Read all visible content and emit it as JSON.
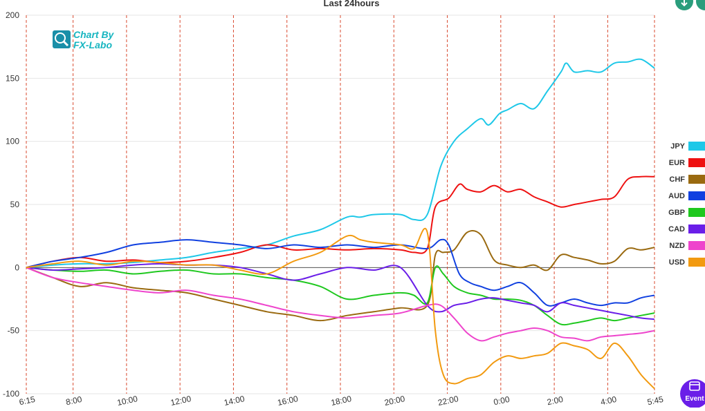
{
  "chart_data": {
    "type": "line",
    "title": "Last 24hours",
    "xlabel": "",
    "ylabel": "",
    "ylim": [
      -100,
      200
    ],
    "yticks": [
      -100,
      -50,
      0,
      50,
      100,
      150,
      200
    ],
    "x_tick_labels": [
      "6:15",
      "8:00",
      "10:00",
      "12:00",
      "14:00",
      "16:00",
      "18:00",
      "20:00",
      "22:00",
      "0:00",
      "2:00",
      "4:00",
      "5:45"
    ],
    "x_tick_hours": [
      0,
      1.75,
      3.75,
      5.75,
      7.75,
      9.75,
      11.75,
      13.75,
      15.75,
      17.75,
      19.75,
      21.75,
      23.5
    ],
    "vertical_gridlines": "dashed red at each hour label",
    "legend_position": "right",
    "series": [
      {
        "name": "JPY",
        "color": "#1ec8e8",
        "points": [
          [
            0,
            0
          ],
          [
            1,
            2
          ],
          [
            2,
            3
          ],
          [
            3,
            3
          ],
          [
            4,
            4
          ],
          [
            5,
            6
          ],
          [
            6,
            8
          ],
          [
            7,
            12
          ],
          [
            8,
            15
          ],
          [
            9,
            18
          ],
          [
            10,
            25
          ],
          [
            11,
            30
          ],
          [
            12,
            40
          ],
          [
            12.5,
            40
          ],
          [
            13,
            42
          ],
          [
            14,
            42
          ],
          [
            14.5,
            38
          ],
          [
            15,
            42
          ],
          [
            15.5,
            80
          ],
          [
            16,
            100
          ],
          [
            16.5,
            110
          ],
          [
            17,
            118
          ],
          [
            17.3,
            113
          ],
          [
            17.7,
            122
          ],
          [
            18,
            125
          ],
          [
            18.5,
            130
          ],
          [
            19,
            126
          ],
          [
            19.5,
            140
          ],
          [
            20,
            155
          ],
          [
            20.2,
            162
          ],
          [
            20.5,
            155
          ],
          [
            21,
            156
          ],
          [
            21.5,
            155
          ],
          [
            22,
            162
          ],
          [
            22.5,
            163
          ],
          [
            23,
            165
          ],
          [
            23.5,
            158
          ]
        ]
      },
      {
        "name": "EUR",
        "color": "#ee1111",
        "points": [
          [
            0,
            0
          ],
          [
            1,
            5
          ],
          [
            2,
            8
          ],
          [
            3,
            5
          ],
          [
            4,
            6
          ],
          [
            5,
            4
          ],
          [
            6,
            5
          ],
          [
            7,
            8
          ],
          [
            8,
            12
          ],
          [
            9,
            18
          ],
          [
            10,
            14
          ],
          [
            11,
            15
          ],
          [
            12,
            14
          ],
          [
            13,
            15
          ],
          [
            14,
            14
          ],
          [
            14.5,
            12
          ],
          [
            15,
            15
          ],
          [
            15.3,
            48
          ],
          [
            15.8,
            55
          ],
          [
            16.2,
            66
          ],
          [
            16.5,
            62
          ],
          [
            17,
            60
          ],
          [
            17.5,
            65
          ],
          [
            18,
            60
          ],
          [
            18.5,
            62
          ],
          [
            19,
            56
          ],
          [
            19.5,
            52
          ],
          [
            20,
            48
          ],
          [
            20.5,
            50
          ],
          [
            21,
            52
          ],
          [
            21.5,
            54
          ],
          [
            22,
            56
          ],
          [
            22.5,
            70
          ],
          [
            23,
            72
          ],
          [
            23.5,
            72
          ]
        ]
      },
      {
        "name": "CHF",
        "color": "#9a6a10",
        "points": [
          [
            0,
            0
          ],
          [
            1,
            -8
          ],
          [
            2,
            -15
          ],
          [
            3,
            -12
          ],
          [
            4,
            -16
          ],
          [
            5,
            -18
          ],
          [
            6,
            -20
          ],
          [
            7,
            -25
          ],
          [
            8,
            -30
          ],
          [
            9,
            -35
          ],
          [
            10,
            -38
          ],
          [
            11,
            -42
          ],
          [
            12,
            -38
          ],
          [
            13,
            -35
          ],
          [
            14,
            -32
          ],
          [
            15,
            -30
          ],
          [
            15.3,
            10
          ],
          [
            15.6,
            12
          ],
          [
            16,
            14
          ],
          [
            16.5,
            28
          ],
          [
            17,
            26
          ],
          [
            17.5,
            6
          ],
          [
            18,
            2
          ],
          [
            18.5,
            0
          ],
          [
            19,
            2
          ],
          [
            19.5,
            -2
          ],
          [
            20,
            10
          ],
          [
            20.5,
            8
          ],
          [
            21,
            6
          ],
          [
            21.5,
            3
          ],
          [
            22,
            5
          ],
          [
            22.5,
            15
          ],
          [
            23,
            14
          ],
          [
            23.5,
            16
          ]
        ]
      },
      {
        "name": "AUD",
        "color": "#1040e0",
        "points": [
          [
            0,
            0
          ],
          [
            1,
            5
          ],
          [
            2,
            8
          ],
          [
            3,
            12
          ],
          [
            4,
            18
          ],
          [
            5,
            20
          ],
          [
            6,
            22
          ],
          [
            7,
            20
          ],
          [
            8,
            18
          ],
          [
            9,
            15
          ],
          [
            10,
            18
          ],
          [
            11,
            16
          ],
          [
            12,
            18
          ],
          [
            13,
            16
          ],
          [
            14,
            18
          ],
          [
            15,
            15
          ],
          [
            15.5,
            22
          ],
          [
            15.8,
            18
          ],
          [
            16.2,
            -5
          ],
          [
            16.6,
            -12
          ],
          [
            17,
            -15
          ],
          [
            17.5,
            -18
          ],
          [
            18,
            -15
          ],
          [
            18.5,
            -12
          ],
          [
            19,
            -20
          ],
          [
            19.5,
            -30
          ],
          [
            20,
            -28
          ],
          [
            20.5,
            -25
          ],
          [
            21,
            -28
          ],
          [
            21.5,
            -30
          ],
          [
            22,
            -28
          ],
          [
            22.5,
            -28
          ],
          [
            23,
            -24
          ],
          [
            23.5,
            -22
          ]
        ]
      },
      {
        "name": "GBP",
        "color": "#1ec81e",
        "points": [
          [
            0,
            0
          ],
          [
            1,
            -2
          ],
          [
            2,
            -3
          ],
          [
            3,
            -2
          ],
          [
            4,
            -5
          ],
          [
            5,
            -3
          ],
          [
            6,
            -2
          ],
          [
            7,
            -5
          ],
          [
            8,
            -5
          ],
          [
            9,
            -8
          ],
          [
            10,
            -10
          ],
          [
            11,
            -15
          ],
          [
            12,
            -25
          ],
          [
            13,
            -22
          ],
          [
            14,
            -20
          ],
          [
            14.5,
            -22
          ],
          [
            15,
            -28
          ],
          [
            15.3,
            0
          ],
          [
            15.6,
            -5
          ],
          [
            16,
            -15
          ],
          [
            16.5,
            -20
          ],
          [
            17,
            -22
          ],
          [
            17.5,
            -25
          ],
          [
            18,
            -25
          ],
          [
            18.5,
            -26
          ],
          [
            19,
            -30
          ],
          [
            19.5,
            -38
          ],
          [
            20,
            -45
          ],
          [
            20.5,
            -44
          ],
          [
            21,
            -42
          ],
          [
            21.5,
            -40
          ],
          [
            22,
            -42
          ],
          [
            22.5,
            -40
          ],
          [
            23,
            -38
          ],
          [
            23.5,
            -36
          ]
        ]
      },
      {
        "name": "CAD",
        "color": "#6a1ee8",
        "points": [
          [
            0,
            0
          ],
          [
            1,
            -2
          ],
          [
            2,
            -1
          ],
          [
            3,
            0
          ],
          [
            4,
            2
          ],
          [
            5,
            3
          ],
          [
            6,
            2
          ],
          [
            7,
            2
          ],
          [
            8,
            0
          ],
          [
            9,
            -5
          ],
          [
            10,
            -10
          ],
          [
            11,
            -5
          ],
          [
            12,
            0
          ],
          [
            13,
            -2
          ],
          [
            14,
            0
          ],
          [
            15,
            -30
          ],
          [
            15.5,
            -35
          ],
          [
            16,
            -30
          ],
          [
            16.5,
            -28
          ],
          [
            17,
            -25
          ],
          [
            17.5,
            -24
          ],
          [
            18,
            -26
          ],
          [
            18.5,
            -28
          ],
          [
            19,
            -30
          ],
          [
            19.5,
            -35
          ],
          [
            20,
            -28
          ],
          [
            20.5,
            -30
          ],
          [
            21,
            -32
          ],
          [
            21.5,
            -34
          ],
          [
            22,
            -36
          ],
          [
            22.5,
            -38
          ],
          [
            23,
            -40
          ],
          [
            23.5,
            -41
          ]
        ]
      },
      {
        "name": "NZD",
        "color": "#ee44cc",
        "points": [
          [
            0,
            0
          ],
          [
            1,
            -8
          ],
          [
            2,
            -12
          ],
          [
            3,
            -15
          ],
          [
            4,
            -18
          ],
          [
            5,
            -20
          ],
          [
            6,
            -18
          ],
          [
            7,
            -22
          ],
          [
            8,
            -25
          ],
          [
            9,
            -30
          ],
          [
            10,
            -35
          ],
          [
            11,
            -38
          ],
          [
            12,
            -40
          ],
          [
            13,
            -38
          ],
          [
            14,
            -36
          ],
          [
            15,
            -30
          ],
          [
            15.5,
            -30
          ],
          [
            16,
            -40
          ],
          [
            16.5,
            -52
          ],
          [
            17,
            -58
          ],
          [
            17.5,
            -55
          ],
          [
            18,
            -52
          ],
          [
            18.5,
            -50
          ],
          [
            19,
            -48
          ],
          [
            19.5,
            -50
          ],
          [
            20,
            -55
          ],
          [
            20.5,
            -56
          ],
          [
            21,
            -58
          ],
          [
            21.5,
            -55
          ],
          [
            22,
            -54
          ],
          [
            22.5,
            -53
          ],
          [
            23,
            -52
          ],
          [
            23.5,
            -50
          ]
        ]
      },
      {
        "name": "USD",
        "color": "#f29a10",
        "points": [
          [
            0,
            0
          ],
          [
            1,
            3
          ],
          [
            2,
            5
          ],
          [
            3,
            2
          ],
          [
            4,
            5
          ],
          [
            5,
            4
          ],
          [
            6,
            2
          ],
          [
            7,
            2
          ],
          [
            8,
            -2
          ],
          [
            9,
            -5
          ],
          [
            10,
            5
          ],
          [
            11,
            12
          ],
          [
            12,
            25
          ],
          [
            12.5,
            22
          ],
          [
            13,
            20
          ],
          [
            14,
            18
          ],
          [
            14.5,
            15
          ],
          [
            15,
            28
          ],
          [
            15.3,
            -50
          ],
          [
            15.6,
            -85
          ],
          [
            16,
            -92
          ],
          [
            16.5,
            -88
          ],
          [
            17,
            -85
          ],
          [
            17.5,
            -75
          ],
          [
            18,
            -70
          ],
          [
            18.5,
            -72
          ],
          [
            19,
            -70
          ],
          [
            19.5,
            -68
          ],
          [
            20,
            -60
          ],
          [
            20.5,
            -62
          ],
          [
            21,
            -65
          ],
          [
            21.5,
            -72
          ],
          [
            22,
            -60
          ],
          [
            22.5,
            -70
          ],
          [
            23,
            -85
          ],
          [
            23.5,
            -96
          ]
        ]
      }
    ]
  },
  "logo": {
    "line1": "Chart By",
    "line2": "FX-Labo"
  },
  "event_button": {
    "label": "Event"
  }
}
